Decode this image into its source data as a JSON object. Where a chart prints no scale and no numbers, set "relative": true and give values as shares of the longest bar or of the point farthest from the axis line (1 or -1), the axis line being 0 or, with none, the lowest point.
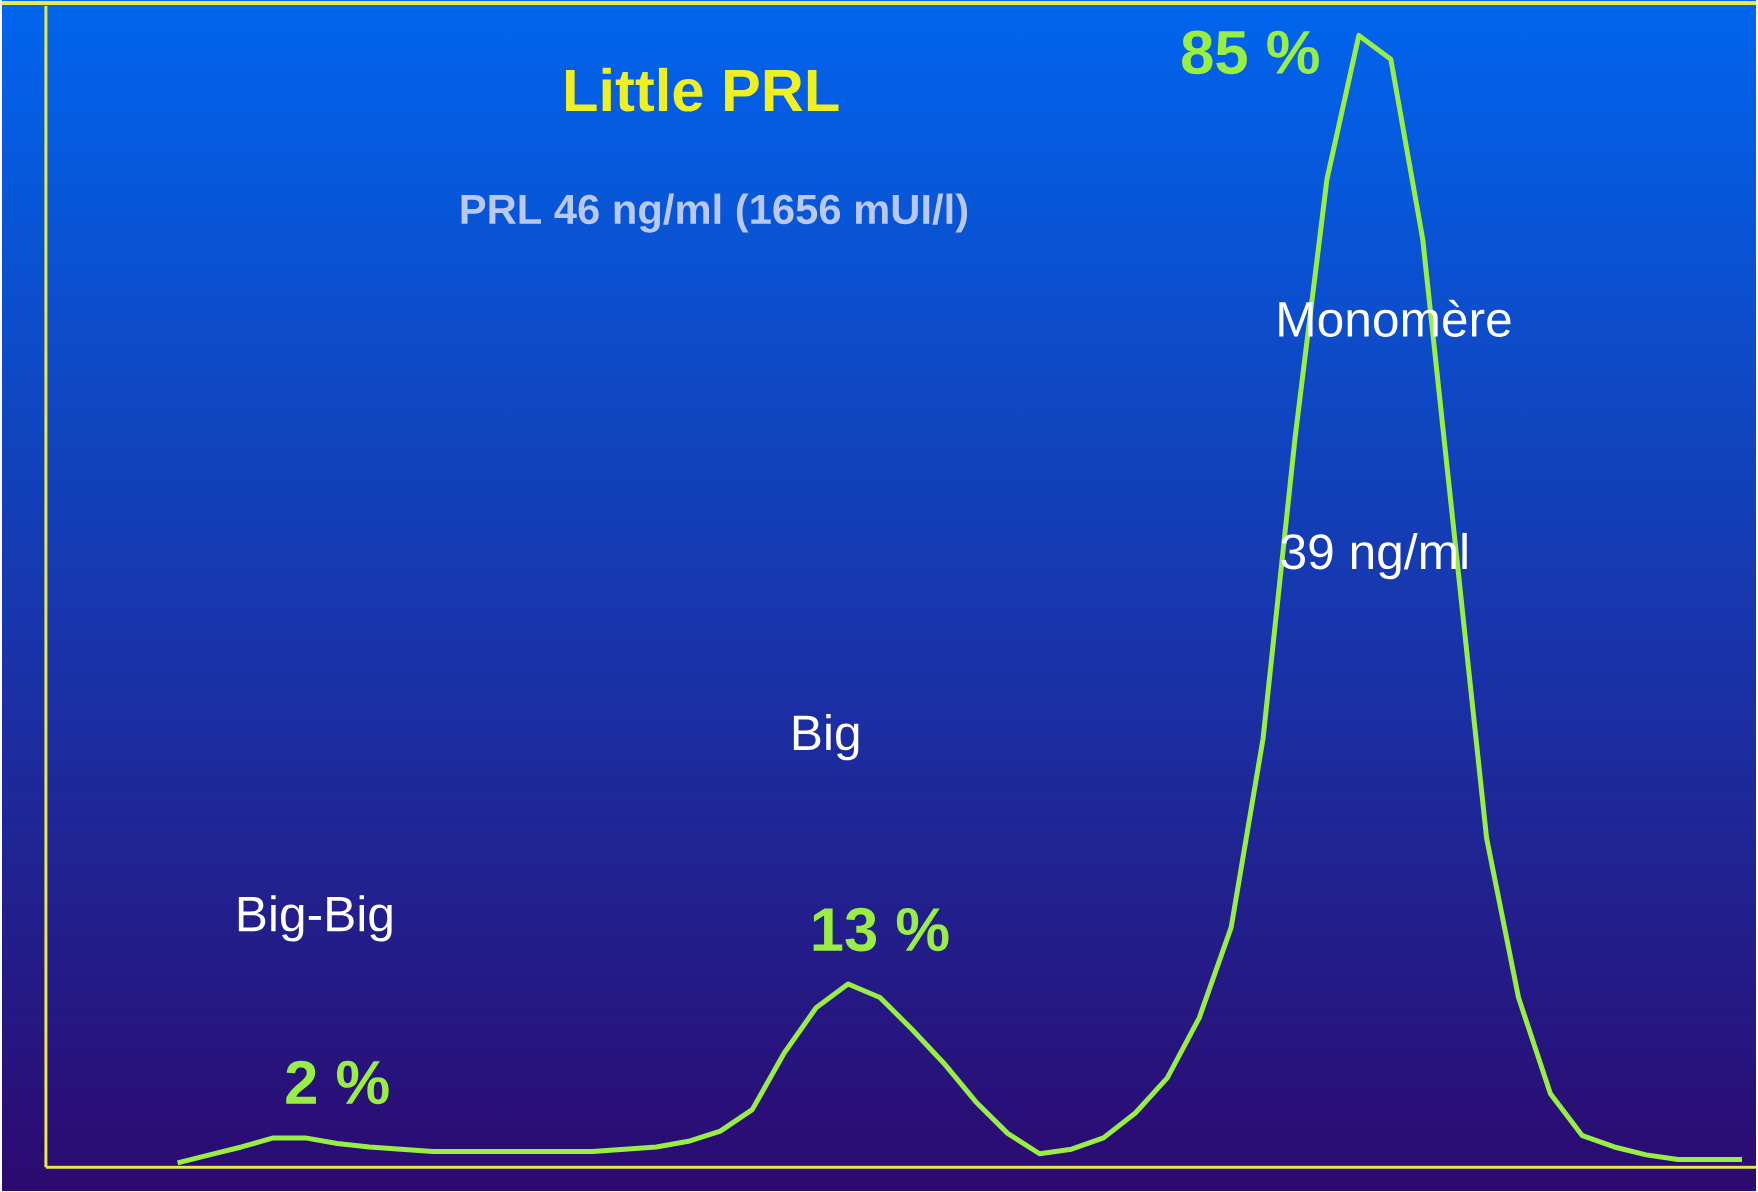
{
  "chart_data": {
    "type": "line",
    "relative": true,
    "title": "Little PRL",
    "subtitle": "PRL 46 ng/ml (1656 mUI/l)",
    "categories": [
      null,
      null,
      null,
      null,
      null,
      null,
      null,
      null,
      null,
      null,
      null,
      null,
      null,
      null,
      null,
      null,
      null,
      null,
      null,
      null,
      null,
      null,
      null,
      null,
      null,
      null,
      null,
      null,
      null,
      null,
      null,
      null,
      null,
      null,
      null,
      null,
      null,
      null,
      null,
      null,
      null,
      null,
      null,
      null,
      null,
      null,
      null,
      null,
      null,
      null
    ],
    "series": [
      {
        "color": "#99ee44",
        "values": [
          0.004,
          0.011,
          0.018,
          0.026,
          0.026,
          0.021,
          0.018,
          0.016,
          0.014,
          0.014,
          0.014,
          0.014,
          0.014,
          0.014,
          0.016,
          0.018,
          0.023,
          0.032,
          0.051,
          0.101,
          0.141,
          0.162,
          0.15,
          0.122,
          0.092,
          0.058,
          0.03,
          0.012,
          0.016,
          0.026,
          0.048,
          0.079,
          0.132,
          0.212,
          0.379,
          0.644,
          0.873,
          1,
          0.979,
          0.82,
          0.556,
          0.291,
          0.15,
          0.065,
          0.028,
          0.018,
          0.011,
          0.007,
          0.007,
          0.007
        ]
      }
    ],
    "annotations": [
      "Big-Big",
      "2 %",
      "Big",
      "13 %",
      "Monomère",
      "39 ng/ml",
      "85 %"
    ],
    "marker": "none",
    "line_style": "solid"
  }
}
